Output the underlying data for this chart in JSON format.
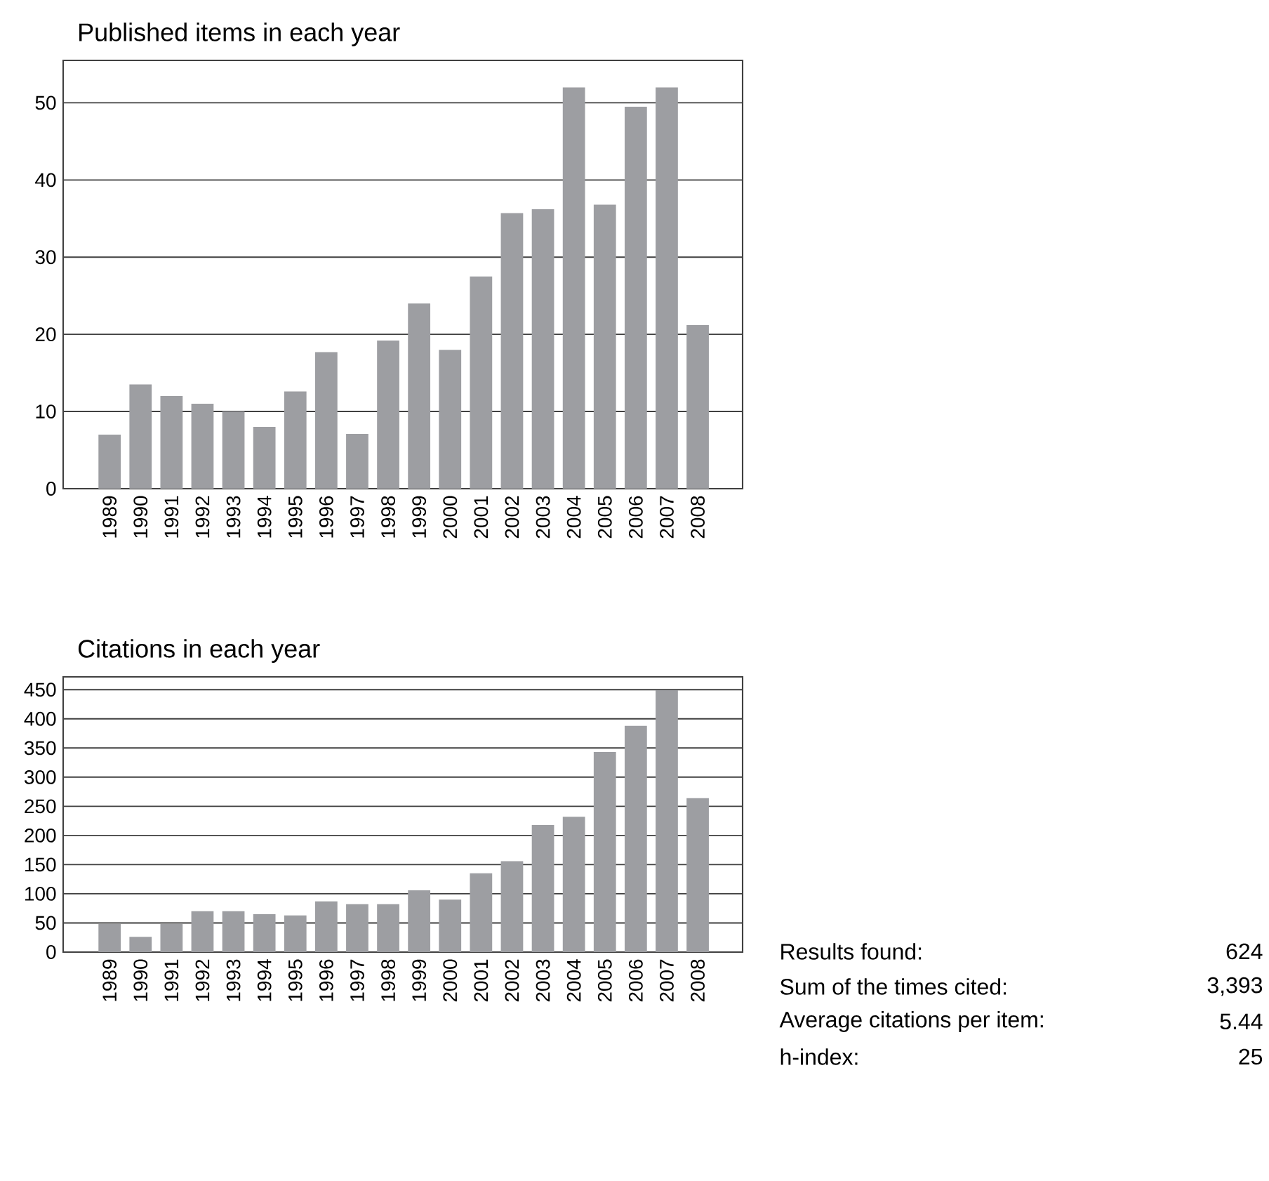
{
  "chart_data": [
    {
      "type": "bar",
      "title": "Published items in each year",
      "categories": [
        "1989",
        "1990",
        "1991",
        "1992",
        "1993",
        "1994",
        "1995",
        "1996",
        "1997",
        "1998",
        "1999",
        "2000",
        "2001",
        "2002",
        "2003",
        "2004",
        "2005",
        "2006",
        "2007",
        "2008"
      ],
      "values": [
        7,
        13.5,
        12,
        11,
        10,
        8,
        12.6,
        17.7,
        7.1,
        19.2,
        24,
        18,
        27.5,
        35.7,
        36.2,
        52,
        36.8,
        49.5,
        52,
        21.2
      ],
      "color": "#9d9ea2",
      "ylim": [
        0,
        55.5
      ],
      "yticks": [
        0,
        10,
        20,
        30,
        40,
        50
      ],
      "grid": "y"
    },
    {
      "type": "bar",
      "title": "Citations in each year",
      "categories": [
        "1989",
        "1990",
        "1991",
        "1992",
        "1993",
        "1994",
        "1995",
        "1996",
        "1997",
        "1998",
        "1999",
        "2000",
        "2001",
        "2002",
        "2003",
        "2004",
        "2005",
        "2006",
        "2007",
        "2008"
      ],
      "values": [
        48,
        26,
        48,
        70,
        70,
        65,
        63,
        87,
        82,
        82,
        106,
        90,
        135,
        156,
        218,
        232,
        343,
        388,
        449,
        264
      ],
      "color": "#9d9ea2",
      "ylim": [
        0,
        472
      ],
      "yticks": [
        0,
        50,
        100,
        150,
        200,
        250,
        300,
        350,
        400,
        450
      ],
      "grid": "y"
    },
    {
      "type": "other",
      "annotations": [
        "Results found:",
        "624",
        "Sum of the times cited:",
        "3,393",
        "Average citations per item:",
        "5.44",
        "h-index:",
        "25"
      ]
    }
  ]
}
